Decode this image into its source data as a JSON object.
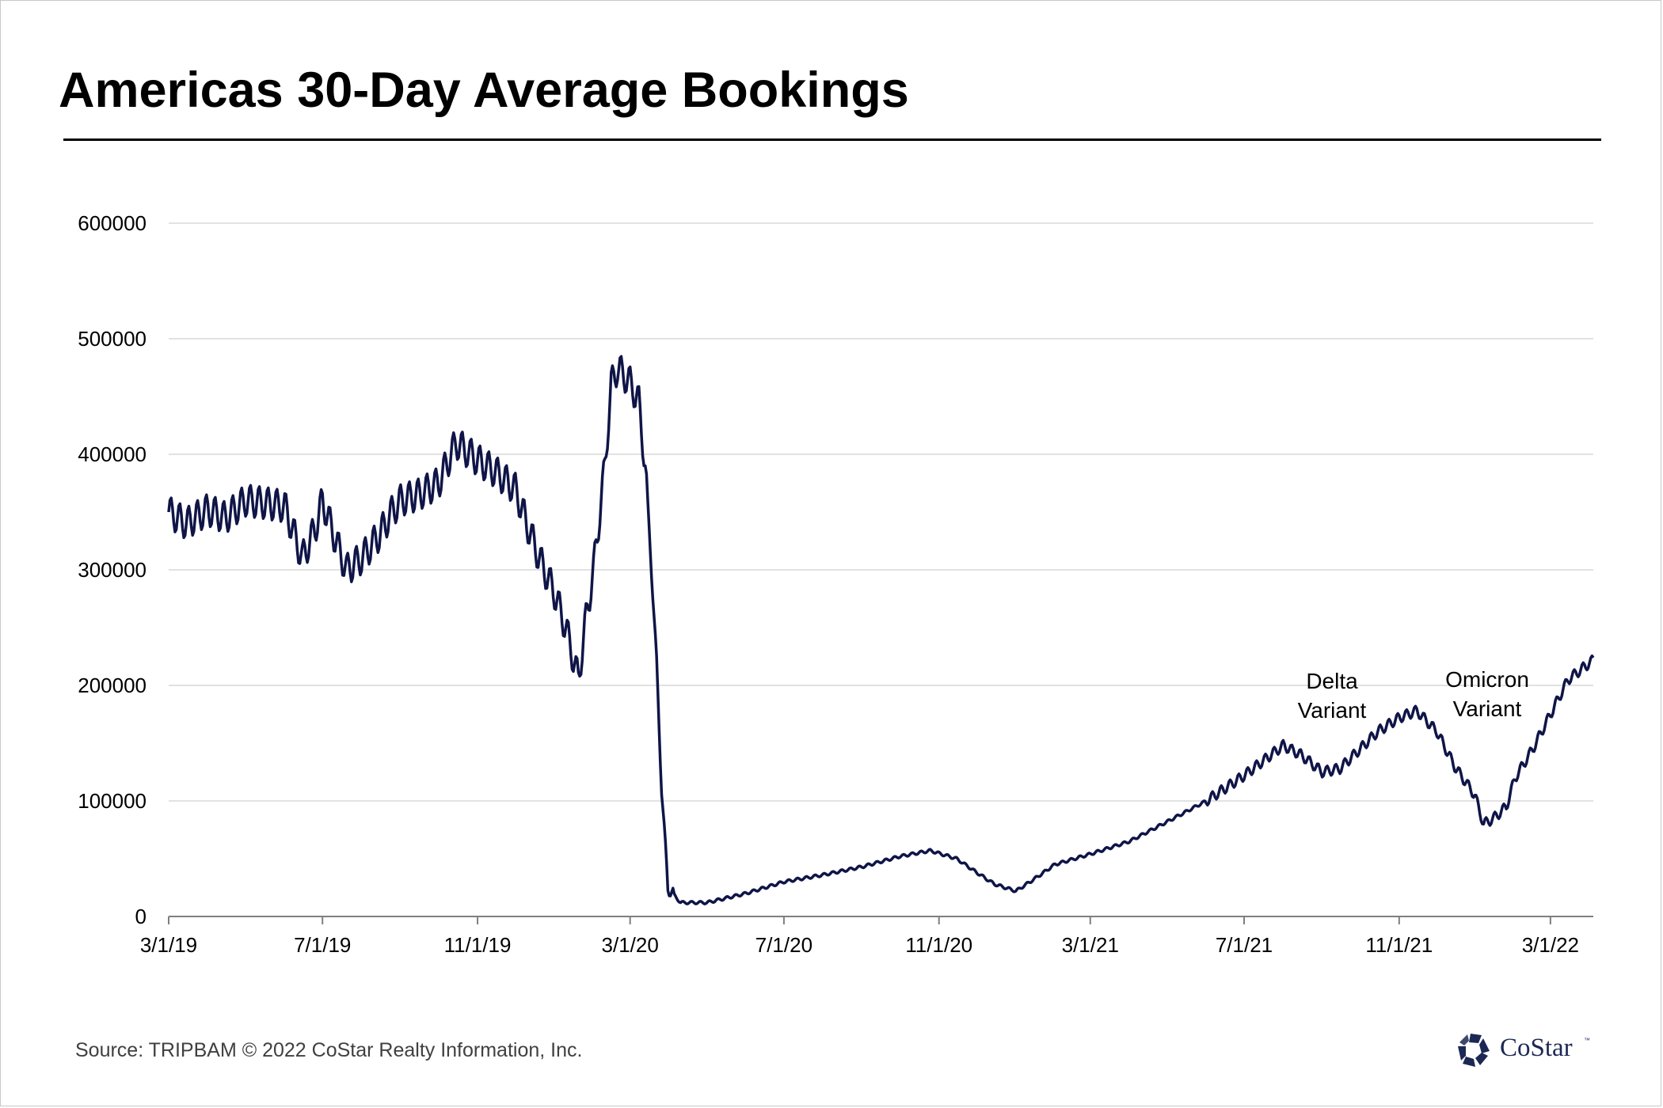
{
  "title": "Americas 30-Day Average Bookings",
  "source": "Source: TRIPBAM  © 2022 CoStar Realty Information, Inc.",
  "logo": {
    "text": "CoStar",
    "tm": "™",
    "icon": "costar-star-logo-icon"
  },
  "colors": {
    "line": "#0f1547",
    "grid": "#d9d9d9",
    "axis": "#7f7f7f",
    "logo": "#1c2854"
  },
  "chart_data": {
    "type": "line",
    "title": "Americas 30-Day Average Bookings",
    "xlabel": "",
    "ylabel": "",
    "ylim": [
      0,
      600000
    ],
    "grid": "horizontal",
    "legend": "none",
    "x_range": [
      "3/1/19",
      "4/4/22"
    ],
    "y_ticks": [
      "0",
      "100000",
      "200000",
      "300000",
      "400000",
      "500000",
      "600000"
    ],
    "y_tick_values": [
      0,
      100000,
      200000,
      300000,
      400000,
      500000,
      600000
    ],
    "x_ticks": [
      "3/1/19",
      "7/1/19",
      "11/1/19",
      "3/1/20",
      "7/1/20",
      "11/1/20",
      "3/1/21",
      "7/1/21",
      "11/1/21",
      "3/1/22"
    ],
    "series": [
      {
        "points": [
          [
            "3/1/19",
            350000
          ],
          [
            "3/15/19",
            340000
          ],
          [
            "4/1/19",
            352000
          ],
          [
            "4/15/19",
            345000
          ],
          [
            "5/1/19",
            360000
          ],
          [
            "5/15/19",
            358000
          ],
          [
            "6/1/19",
            355000
          ],
          [
            "6/15/19",
            310000
          ],
          [
            "6/25/19",
            335000
          ],
          [
            "7/1/19",
            360000
          ],
          [
            "7/10/19",
            330000
          ],
          [
            "7/20/19",
            300000
          ],
          [
            "8/1/19",
            310000
          ],
          [
            "8/15/19",
            330000
          ],
          [
            "8/25/19",
            350000
          ],
          [
            "9/1/19",
            360000
          ],
          [
            "9/15/19",
            365000
          ],
          [
            "10/1/19",
            375000
          ],
          [
            "10/15/19",
            410000
          ],
          [
            "11/1/19",
            395000
          ],
          [
            "11/15/19",
            385000
          ],
          [
            "12/1/19",
            370000
          ],
          [
            "12/10/19",
            340000
          ],
          [
            "12/20/19",
            310000
          ],
          [
            "1/1/20",
            280000
          ],
          [
            "1/10/20",
            250000
          ],
          [
            "1/20/20",
            205000
          ],
          [
            "1/25/20",
            250000
          ],
          [
            "2/1/20",
            300000
          ],
          [
            "2/10/20",
            390000
          ],
          [
            "2/15/20",
            460000
          ],
          [
            "2/20/20",
            475000
          ],
          [
            "3/1/20",
            462000
          ],
          [
            "3/8/20",
            445000
          ],
          [
            "3/13/20",
            390000
          ],
          [
            "3/18/20",
            300000
          ],
          [
            "3/22/20",
            220000
          ],
          [
            "3/26/20",
            110000
          ],
          [
            "3/31/20",
            25000
          ],
          [
            "4/10/20",
            12000
          ],
          [
            "5/1/20",
            12000
          ],
          [
            "6/1/20",
            20000
          ],
          [
            "7/1/20",
            30000
          ],
          [
            "8/1/20",
            36000
          ],
          [
            "9/1/20",
            43000
          ],
          [
            "10/1/20",
            52000
          ],
          [
            "10/25/20",
            57000
          ],
          [
            "11/15/20",
            50000
          ],
          [
            "12/1/20",
            38000
          ],
          [
            "12/15/20",
            28000
          ],
          [
            "1/1/21",
            22000
          ],
          [
            "1/15/21",
            32000
          ],
          [
            "2/1/21",
            45000
          ],
          [
            "3/1/21",
            54000
          ],
          [
            "4/1/21",
            65000
          ],
          [
            "5/1/21",
            82000
          ],
          [
            "6/1/21",
            100000
          ],
          [
            "7/1/21",
            122000
          ],
          [
            "8/1/21",
            148000
          ],
          [
            "8/15/21",
            140000
          ],
          [
            "9/1/21",
            125000
          ],
          [
            "9/15/21",
            128000
          ],
          [
            "10/1/21",
            145000
          ],
          [
            "10/15/21",
            160000
          ],
          [
            "11/1/21",
            172000
          ],
          [
            "11/15/21",
            178000
          ],
          [
            "12/1/21",
            160000
          ],
          [
            "12/15/21",
            130000
          ],
          [
            "12/31/21",
            105000
          ],
          [
            "1/7/22",
            80000
          ],
          [
            "1/15/22",
            85000
          ],
          [
            "1/25/22",
            95000
          ],
          [
            "2/1/22",
            120000
          ],
          [
            "2/15/22",
            145000
          ],
          [
            "3/1/22",
            175000
          ],
          [
            "3/15/22",
            205000
          ],
          [
            "4/4/22",
            222000
          ]
        ]
      }
    ],
    "annotations": [
      {
        "lines": [
          "Delta",
          "Variant"
        ]
      },
      {
        "lines": [
          "Omicron",
          "Variant"
        ]
      }
    ]
  }
}
